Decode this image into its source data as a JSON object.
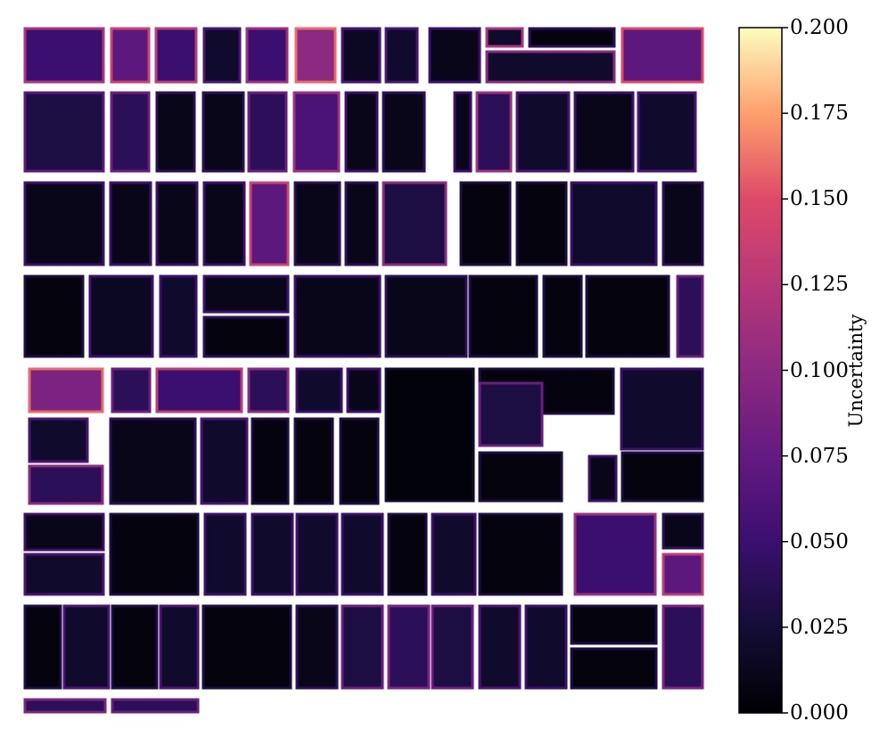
{
  "chart_data": {
    "type": "heatmap",
    "title": "",
    "colorbar": {
      "label": "Uncertainty",
      "colormap": "magma",
      "range": [
        0.0,
        0.2
      ],
      "ticks": [
        "0.000",
        "0.025",
        "0.050",
        "0.075",
        "0.100",
        "0.125",
        "0.150",
        "0.175",
        "0.200"
      ]
    },
    "grid": false,
    "axes_visible": false
  }
}
